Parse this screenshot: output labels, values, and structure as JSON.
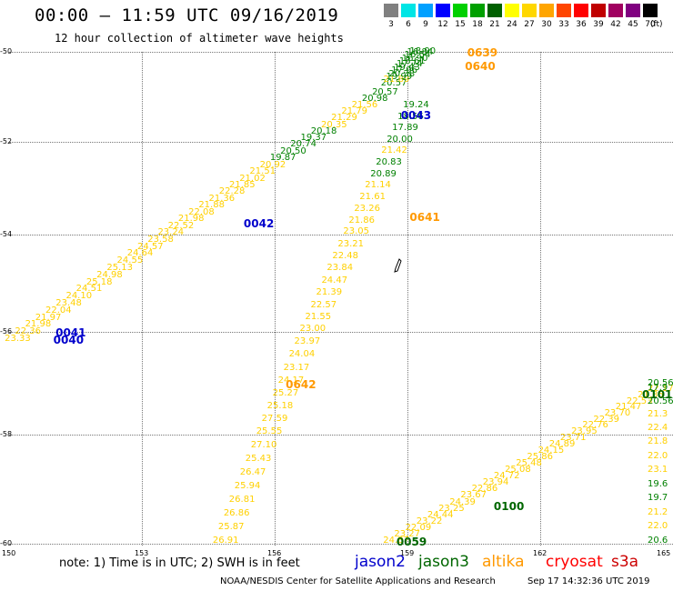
{
  "title": "00:00 – 11:59 UTC 09/16/2019",
  "subtitle": "12 hour collection of altimeter wave heights",
  "color_scale": {
    "labels": [
      "3",
      "6",
      "9",
      "12",
      "15",
      "18",
      "21",
      "24",
      "27",
      "30",
      "33",
      "36",
      "39",
      "42",
      "45",
      "70"
    ],
    "colors": [
      "#808080",
      "#00e5e5",
      "#00a0ff",
      "#0000ff",
      "#00d000",
      "#00a000",
      "#006000",
      "#ffff00",
      "#ffd700",
      "#ffa500",
      "#ff4500",
      "#ff0000",
      "#c00000",
      "#a00060",
      "#800080",
      "#000000"
    ],
    "unit": "(ft)"
  },
  "axes": {
    "y_ticks": [
      "-50",
      "-52",
      "-54",
      "-56",
      "-58",
      "-60"
    ],
    "x_ticks": [
      "150",
      "153",
      "156",
      "159",
      "162",
      "165"
    ]
  },
  "note": "note: 1) Time is in UTC; 2) SWH is in feet",
  "legend": [
    {
      "label": "jason2",
      "color": "#0000cc"
    },
    {
      "label": "jason3",
      "color": "#006600"
    },
    {
      "label": "altika",
      "color": "#ff9900"
    },
    {
      "label": "cryosat",
      "color": "#ff0000"
    },
    {
      "label": "s3a",
      "color": "#cc0000"
    }
  ],
  "credit": "NOAA/NESDIS Center for Satellite Applications and Research",
  "timestamp": "Sep 17 14:32:36 UTC 2019",
  "pass_labels": [
    {
      "text": "0639",
      "lon": 160.35,
      "lat": -50.0,
      "color": "#ff9900"
    },
    {
      "text": "0640",
      "lon": 160.3,
      "lat": -50.3,
      "color": "#ff9900"
    },
    {
      "text": "0043",
      "lon": 158.85,
      "lat": -51.4,
      "color": "#0000cc"
    },
    {
      "text": "0042",
      "lon": 155.3,
      "lat": -53.75,
      "color": "#0000cc"
    },
    {
      "text": "0641",
      "lon": 159.05,
      "lat": -53.6,
      "color": "#ff9900"
    },
    {
      "text": "0040",
      "lon": 151.0,
      "lat": -56.15,
      "color": "#0000cc"
    },
    {
      "text": "0041",
      "lon": 151.05,
      "lat": -56.0,
      "color": "#0000cc"
    },
    {
      "text": "0642",
      "lon": 156.25,
      "lat": -57.0,
      "color": "#ff9900"
    },
    {
      "text": "0101",
      "lon": 164.35,
      "lat": -57.2,
      "color": "#006600"
    },
    {
      "text": "0100",
      "lon": 160.95,
      "lat": -59.3,
      "color": "#006600"
    },
    {
      "text": "0059",
      "lon": 158.75,
      "lat": -59.95,
      "color": "#006600"
    }
  ],
  "tracks": [
    {
      "name": "track-0042-0043",
      "start": [
        149.9,
        -56.15
      ],
      "end": [
        158.2,
        -50.9
      ],
      "values": [
        "23.33",
        "22.36",
        "21.98",
        "21.97",
        "22.04",
        "23.48",
        "24.10",
        "24.51",
        "25.18",
        "24.98",
        "25.13",
        "24.55",
        "24.64",
        "24.57",
        "23.58",
        "23.24",
        "22.52",
        "21.98",
        "22.08",
        "21.88",
        "21.36",
        "22.28",
        "21.85",
        "21.02",
        "21.51",
        "20.92",
        "19.87",
        "20.50",
        "20.74",
        "19.37",
        "20.18",
        "20.35",
        "21.29",
        "21.79",
        "21.56",
        "20.98",
        "20.57"
      ],
      "colors": [
        "#ffd000",
        "#ffd000",
        "#ffd000",
        "#ffd000",
        "#ffd000",
        "#ffd000",
        "#ffd000",
        "#ffd000",
        "#ffd000",
        "#ffd000",
        "#ffd000",
        "#ffd000",
        "#ffd000",
        "#ffd000",
        "#ffd000",
        "#ffd000",
        "#ffd000",
        "#ffd000",
        "#ffd000",
        "#ffd000",
        "#ffd000",
        "#ffd000",
        "#ffd000",
        "#ffd000",
        "#ffd000",
        "#ffd000",
        "#008000",
        "#008000",
        "#008000",
        "#008000",
        "#008000",
        "#ffd000",
        "#ffd000",
        "#ffd000",
        "#ffd000",
        "#008000",
        "#008000"
      ]
    },
    {
      "name": "track-0043-upper",
      "start": [
        158.4,
        -50.7
      ],
      "end": [
        159.05,
        -49.95
      ],
      "values": [
        "20.57",
        "21.89",
        "19.99",
        "20.38",
        "17.96",
        "19.43",
        "17.74",
        "18.61",
        "16.90",
        "16.54",
        "16.84",
        "18.90"
      ],
      "colors": [
        "#008000",
        "#ffd000",
        "#008000",
        "#008000",
        "#008000",
        "#008000",
        "#008000",
        "#008000",
        "#008000",
        "#008000",
        "#008000",
        "#008000"
      ]
    },
    {
      "name": "track-0641-0642",
      "start": [
        158.9,
        -51.2
      ],
      "end": [
        154.6,
        -59.95
      ],
      "values": [
        "19.24",
        "18.56",
        "17.89",
        "20.00",
        "21.42",
        "20.83",
        "20.89",
        "21.14",
        "21.61",
        "23.26",
        "21.86",
        "23.05",
        "23.21",
        "22.48",
        "23.84",
        "24.47",
        "21.39",
        "22.57",
        "21.55",
        "23.00",
        "23.97",
        "24.04",
        "23.17",
        "24.17",
        "25.27",
        "25.18",
        "27.59",
        "25.55",
        "27.10",
        "25.43",
        "26.47",
        "25.94",
        "26.81",
        "26.86",
        "25.87",
        "26.91"
      ],
      "colors": [
        "#008000",
        "#008000",
        "#008000",
        "#008000",
        "#ffd000",
        "#008000",
        "#008000",
        "#ffd000",
        "#ffd000",
        "#ffd000",
        "#ffd000",
        "#ffd000",
        "#ffd000",
        "#ffd000",
        "#ffd000",
        "#ffd000",
        "#ffd000",
        "#ffd000",
        "#ffd000",
        "#ffd000",
        "#ffd000",
        "#ffd000",
        "#ffd000",
        "#ffd000",
        "#ffd000",
        "#ffd000",
        "#ffd000",
        "#ffd000",
        "#ffd000",
        "#ffd000",
        "#ffd000",
        "#ffd000",
        "#ffd000",
        "#ffd000",
        "#ffd000",
        "#ffd000"
      ]
    },
    {
      "name": "track-0059-0101",
      "start": [
        158.45,
        -59.95
      ],
      "end": [
        164.7,
        -57.0
      ],
      "values": [
        "24.87",
        "23.27",
        "22.09",
        "23.22",
        "24.44",
        "23.25",
        "24.39",
        "23.67",
        "22.86",
        "23.94",
        "24.72",
        "25.08",
        "25.48",
        "25.86",
        "24.15",
        "24.89",
        "23.71",
        "23.95",
        "22.76",
        "22.39",
        "23.70",
        "21.47",
        "22.53",
        "21.85",
        "22.17",
        "20.56"
      ],
      "colors": [
        "#ffd000",
        "#ffd000",
        "#ffd000",
        "#ffd000",
        "#ffd000",
        "#ffd000",
        "#ffd000",
        "#ffd000",
        "#ffd000",
        "#ffd000",
        "#ffd000",
        "#ffd000",
        "#ffd000",
        "#ffd000",
        "#ffd000",
        "#ffd000",
        "#ffd000",
        "#ffd000",
        "#ffd000",
        "#ffd000",
        "#ffd000",
        "#ffd000",
        "#ffd000",
        "#ffd000",
        "#ffd000",
        "#008000"
      ]
    },
    {
      "name": "track-east-edge",
      "start": [
        164.95,
        -57.1
      ],
      "end": [
        164.95,
        -59.95
      ],
      "values": [
        "17.9",
        "20.56",
        "21.3",
        "22.4",
        "21.8",
        "22.0",
        "23.1",
        "19.6",
        "19.7",
        "21.2",
        "22.0",
        "20.6"
      ],
      "colors": [
        "#008000",
        "#008000",
        "#ffd000",
        "#ffd000",
        "#ffd000",
        "#ffd000",
        "#ffd000",
        "#008000",
        "#008000",
        "#ffd000",
        "#ffd000",
        "#008000"
      ]
    }
  ]
}
